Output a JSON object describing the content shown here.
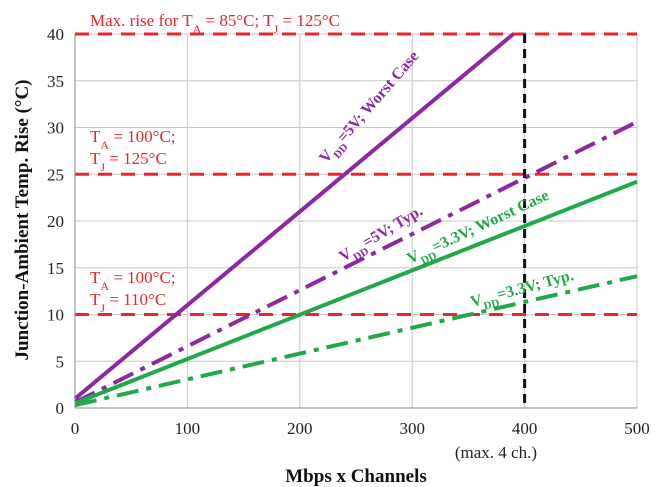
{
  "chart_data": {
    "type": "line",
    "xlabel": "Mbps x Channels",
    "ylabel": "Junction-Ambient Temp. Rise (°C)",
    "xlim": [
      0,
      500
    ],
    "ylim": [
      0,
      40
    ],
    "x_ticks": [
      "0",
      "100",
      "200",
      "300",
      "400",
      "500"
    ],
    "y_ticks": [
      "0",
      "5",
      "10",
      "15",
      "20",
      "25",
      "30",
      "35",
      "40"
    ],
    "grid": true,
    "series": [
      {
        "name": "VDD=5V; Worst Case",
        "style": "solid",
        "color": "#8a2aa0",
        "x": [
          0,
          390
        ],
        "y": [
          1.0,
          40
        ]
      },
      {
        "name": "VDD=5V; Typ.",
        "style": "dashdot",
        "color": "#8a2aa0",
        "x": [
          0,
          500
        ],
        "y": [
          0.6,
          30.6
        ]
      },
      {
        "name": "VDD=3.3V; Worst Case",
        "style": "solid",
        "color": "#22a84a",
        "x": [
          0,
          500
        ],
        "y": [
          0.5,
          24.2
        ]
      },
      {
        "name": "VDD=3.3V; Typ.",
        "style": "dashdot",
        "color": "#22a84a",
        "x": [
          0,
          500
        ],
        "y": [
          0.3,
          14.1
        ]
      }
    ],
    "series_labels": [
      {
        "main": "V",
        "sub": "DD",
        "rest": "=5V; Worst Case",
        "color": "#8a2aa0"
      },
      {
        "main": "V",
        "sub": "DD",
        "rest": "=5V; Typ.",
        "color": "#8a2aa0"
      },
      {
        "main": "V",
        "sub": "DD",
        "rest": "=3.3V; Worst Case",
        "color": "#22a84a"
      },
      {
        "main": "V",
        "sub": "DD",
        "rest": "=3.3V; Typ.",
        "color": "#22a84a"
      }
    ],
    "limit_lines": [
      {
        "y": 40,
        "color": "#e8262b"
      },
      {
        "y": 25,
        "color": "#e8262b"
      },
      {
        "y": 10,
        "color": "#e8262b"
      }
    ],
    "annotations": {
      "max_rise": {
        "prefix": "Max. rise for T",
        "sub1": "A",
        "mid": " = 85°C; T",
        "sub2": "J",
        "end": " = 125°C"
      },
      "limit25_line1": {
        "prefix": "T",
        "sub": "A",
        "rest": " = 100°C;"
      },
      "limit25_line2": {
        "prefix": "T",
        "sub": "J",
        "rest": " = 125°C"
      },
      "limit10_line1": {
        "prefix": "T",
        "sub": "A",
        "rest": " = 100°C;"
      },
      "limit10_line2": {
        "prefix": "T",
        "sub": "J",
        "rest": " = 110°C"
      },
      "max_channels": "(max. 4 ch.)"
    },
    "vertical_marker": {
      "x": 400,
      "color": "#111111"
    },
    "colors": {
      "limit": "#e8262b",
      "grid": "#c8c8c8",
      "axis": "#888888"
    }
  }
}
